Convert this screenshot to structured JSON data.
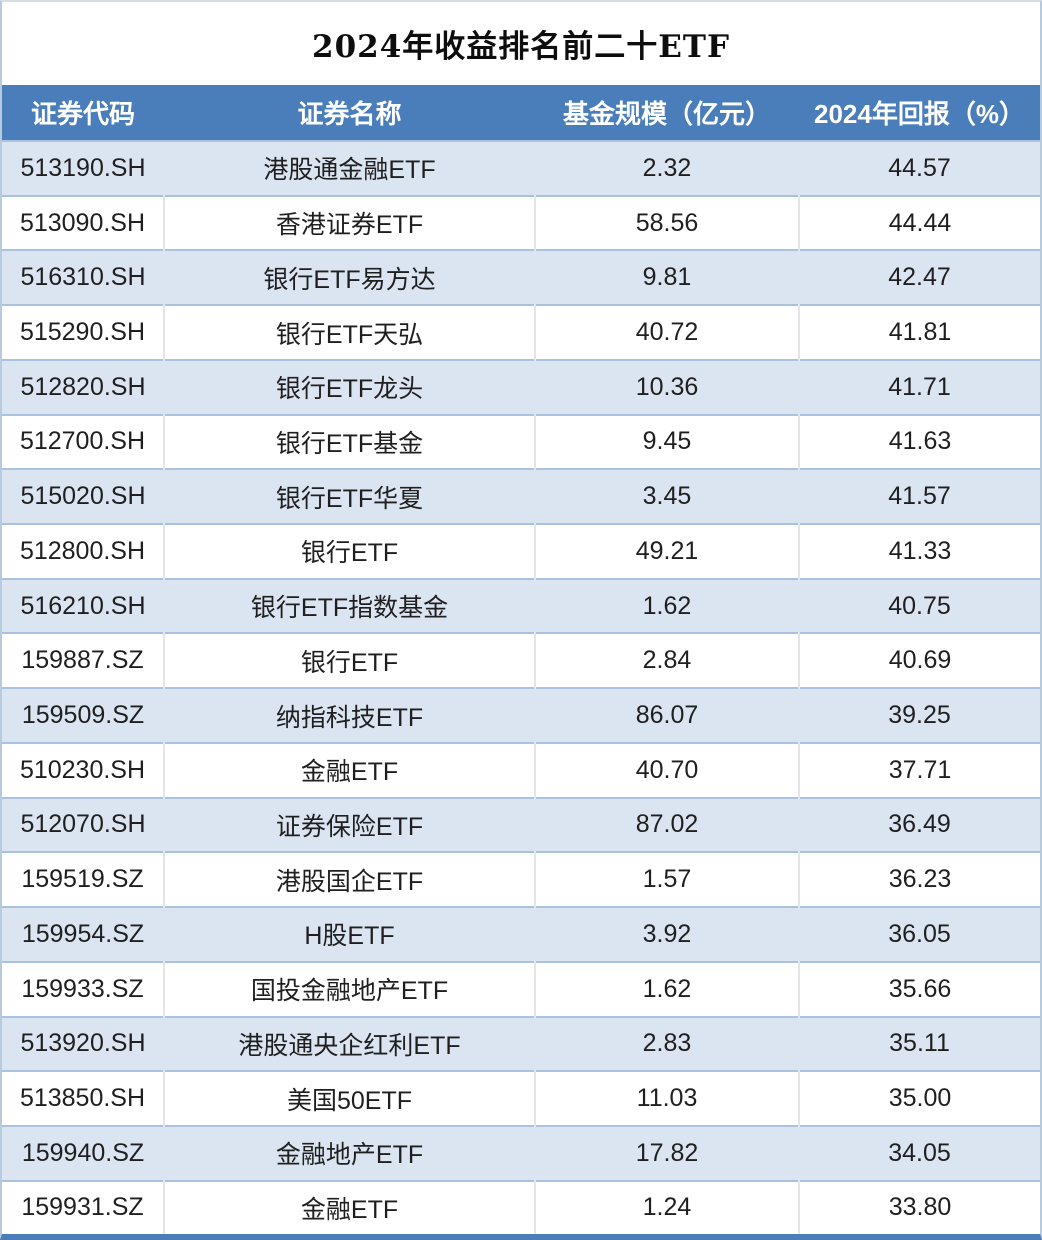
{
  "title": "2024年收益排名前二十ETF",
  "table": {
    "headers": [
      "证券代码",
      "证券名称",
      "基金规模（亿元）",
      "2024年回报（%）"
    ],
    "rows": [
      {
        "code": "513190.SH",
        "name": "港股通金融ETF",
        "size": "2.32",
        "ret": "44.57"
      },
      {
        "code": "513090.SH",
        "name": "香港证券ETF",
        "size": "58.56",
        "ret": "44.44"
      },
      {
        "code": "516310.SH",
        "name": "银行ETF易方达",
        "size": "9.81",
        "ret": "42.47"
      },
      {
        "code": "515290.SH",
        "name": "银行ETF天弘",
        "size": "40.72",
        "ret": "41.81"
      },
      {
        "code": "512820.SH",
        "name": "银行ETF龙头",
        "size": "10.36",
        "ret": "41.71"
      },
      {
        "code": "512700.SH",
        "name": "银行ETF基金",
        "size": "9.45",
        "ret": "41.63"
      },
      {
        "code": "515020.SH",
        "name": "银行ETF华夏",
        "size": "3.45",
        "ret": "41.57"
      },
      {
        "code": "512800.SH",
        "name": "银行ETF",
        "size": "49.21",
        "ret": "41.33"
      },
      {
        "code": "516210.SH",
        "name": "银行ETF指数基金",
        "size": "1.62",
        "ret": "40.75"
      },
      {
        "code": "159887.SZ",
        "name": "银行ETF",
        "size": "2.84",
        "ret": "40.69"
      },
      {
        "code": "159509.SZ",
        "name": "纳指科技ETF",
        "size": "86.07",
        "ret": "39.25"
      },
      {
        "code": "510230.SH",
        "name": "金融ETF",
        "size": "40.70",
        "ret": "37.71"
      },
      {
        "code": "512070.SH",
        "name": "证券保险ETF",
        "size": "87.02",
        "ret": "36.49"
      },
      {
        "code": "159519.SZ",
        "name": "港股国企ETF",
        "size": "1.57",
        "ret": "36.23"
      },
      {
        "code": "159954.SZ",
        "name": "H股ETF",
        "size": "3.92",
        "ret": "36.05"
      },
      {
        "code": "159933.SZ",
        "name": "国投金融地产ETF",
        "size": "1.62",
        "ret": "35.66"
      },
      {
        "code": "513920.SH",
        "name": "港股通央企红利ETF",
        "size": "2.83",
        "ret": "35.11"
      },
      {
        "code": "513850.SH",
        "name": "美国50ETF",
        "size": "11.03",
        "ret": "35.00"
      },
      {
        "code": "159940.SZ",
        "name": "金融地产ETF",
        "size": "17.82",
        "ret": "34.05"
      },
      {
        "code": "159931.SZ",
        "name": "金融ETF",
        "size": "1.24",
        "ret": "33.80"
      }
    ]
  },
  "colors": {
    "header_bg": "#4A7EBA",
    "header_text": "#FFFFFF",
    "band_row_bg": "#DBE5F1",
    "white_row_bg": "#FFFFFF",
    "row_separator": "#A9C2DE",
    "column_separator": "#E3E5E9",
    "bottom_border": "#4A7EBA",
    "body_text": "#1F1F1F",
    "title_text": "#0D0D0D"
  },
  "chart_data": {
    "type": "table",
    "title": "2024年收益排名前二十ETF",
    "columns": [
      "证券代码",
      "证券名称",
      "基金规模（亿元）",
      "2024年回报（%）"
    ],
    "rows": [
      [
        "513190.SH",
        "港股通金融ETF",
        2.32,
        44.57
      ],
      [
        "513090.SH",
        "香港证券ETF",
        58.56,
        44.44
      ],
      [
        "516310.SH",
        "银行ETF易方达",
        9.81,
        42.47
      ],
      [
        "515290.SH",
        "银行ETF天弘",
        40.72,
        41.81
      ],
      [
        "512820.SH",
        "银行ETF龙头",
        10.36,
        41.71
      ],
      [
        "512700.SH",
        "银行ETF基金",
        9.45,
        41.63
      ],
      [
        "515020.SH",
        "银行ETF华夏",
        3.45,
        41.57
      ],
      [
        "512800.SH",
        "银行ETF",
        49.21,
        41.33
      ],
      [
        "516210.SH",
        "银行ETF指数基金",
        1.62,
        40.75
      ],
      [
        "159887.SZ",
        "银行ETF",
        2.84,
        40.69
      ],
      [
        "159509.SZ",
        "纳指科技ETF",
        86.07,
        39.25
      ],
      [
        "510230.SH",
        "金融ETF",
        40.7,
        37.71
      ],
      [
        "512070.SH",
        "证券保险ETF",
        87.02,
        36.49
      ],
      [
        "159519.SZ",
        "港股国企ETF",
        1.57,
        36.23
      ],
      [
        "159954.SZ",
        "H股ETF",
        3.92,
        36.05
      ],
      [
        "159933.SZ",
        "国投金融地产ETF",
        1.62,
        35.66
      ],
      [
        "513920.SH",
        "港股通央企红利ETF",
        2.83,
        35.11
      ],
      [
        "513850.SH",
        "美国50ETF",
        11.03,
        35.0
      ],
      [
        "159940.SZ",
        "金融地产ETF",
        17.82,
        34.05
      ],
      [
        "159931.SZ",
        "金融ETF",
        1.24,
        33.8
      ]
    ]
  }
}
